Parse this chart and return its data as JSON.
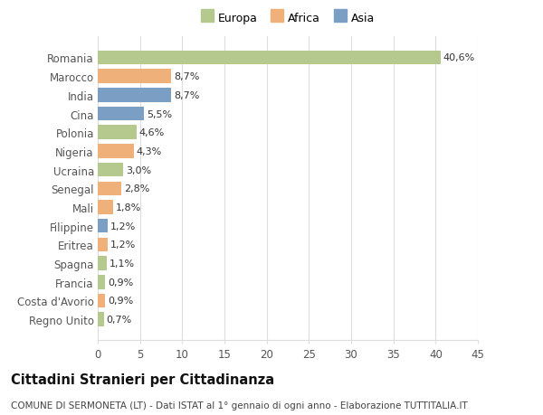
{
  "countries": [
    "Romania",
    "Marocco",
    "India",
    "Cina",
    "Polonia",
    "Nigeria",
    "Ucraina",
    "Senegal",
    "Mali",
    "Filippine",
    "Eritrea",
    "Spagna",
    "Francia",
    "Costa d'Avorio",
    "Regno Unito"
  ],
  "values": [
    40.6,
    8.7,
    8.7,
    5.5,
    4.6,
    4.3,
    3.0,
    2.8,
    1.8,
    1.2,
    1.2,
    1.1,
    0.9,
    0.9,
    0.7
  ],
  "labels": [
    "40,6%",
    "8,7%",
    "8,7%",
    "5,5%",
    "4,6%",
    "4,3%",
    "3,0%",
    "2,8%",
    "1,8%",
    "1,2%",
    "1,2%",
    "1,1%",
    "0,9%",
    "0,9%",
    "0,7%"
  ],
  "continents": [
    "Europa",
    "Africa",
    "Asia",
    "Asia",
    "Europa",
    "Africa",
    "Europa",
    "Africa",
    "Africa",
    "Asia",
    "Africa",
    "Europa",
    "Europa",
    "Africa",
    "Europa"
  ],
  "colors": {
    "Europa": "#b5c98e",
    "Africa": "#f0b07a",
    "Asia": "#7b9ec4"
  },
  "title": "Cittadini Stranieri per Cittadinanza",
  "subtitle": "COMUNE DI SERMONETA (LT) - Dati ISTAT al 1° gennaio di ogni anno - Elaborazione TUTTITALIA.IT",
  "xlim": [
    0,
    45
  ],
  "xticks": [
    0,
    5,
    10,
    15,
    20,
    25,
    30,
    35,
    40,
    45
  ],
  "background_color": "#ffffff",
  "grid_color": "#dddddd",
  "bar_height": 0.75,
  "title_fontsize": 10.5,
  "subtitle_fontsize": 7.5,
  "tick_fontsize": 8.5,
  "label_fontsize": 8
}
